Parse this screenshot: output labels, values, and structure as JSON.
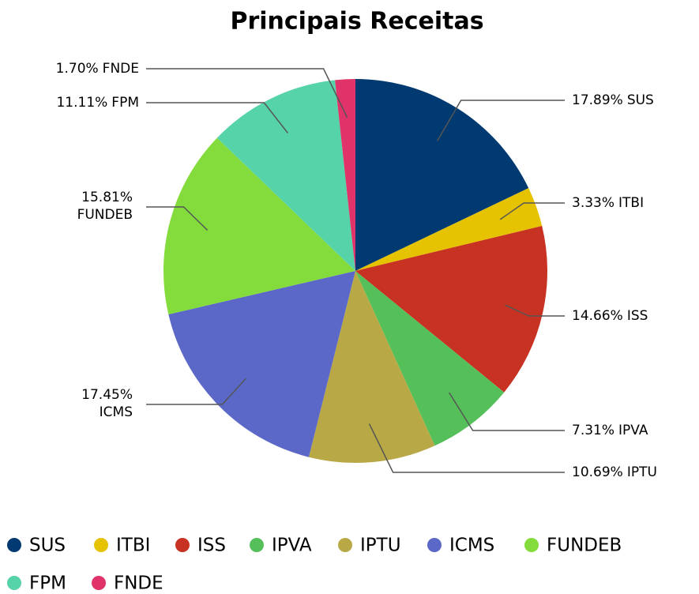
{
  "chart_data": {
    "type": "pie",
    "title": "Principais Receitas",
    "categories": [
      "SUS",
      "ITBI",
      "ISS",
      "IPVA",
      "IPTU",
      "ICMS",
      "FUNDEB",
      "FPM",
      "FNDE"
    ],
    "values": [
      17.89,
      3.33,
      14.66,
      7.31,
      10.69,
      17.45,
      15.81,
      11.11,
      1.7
    ],
    "value_labels": [
      "17.89%",
      "3.33%",
      "14.66%",
      "7.31%",
      "10.69%",
      "17.45%",
      "15.81%",
      "11.11%",
      "1.70%"
    ],
    "colors": [
      "#003a70",
      "#e6c300",
      "#c83222",
      "#55c05a",
      "#b8a846",
      "#5b68c8",
      "#84dc3c",
      "#56d3a8",
      "#e0336a"
    ],
    "legend": "bottom"
  }
}
